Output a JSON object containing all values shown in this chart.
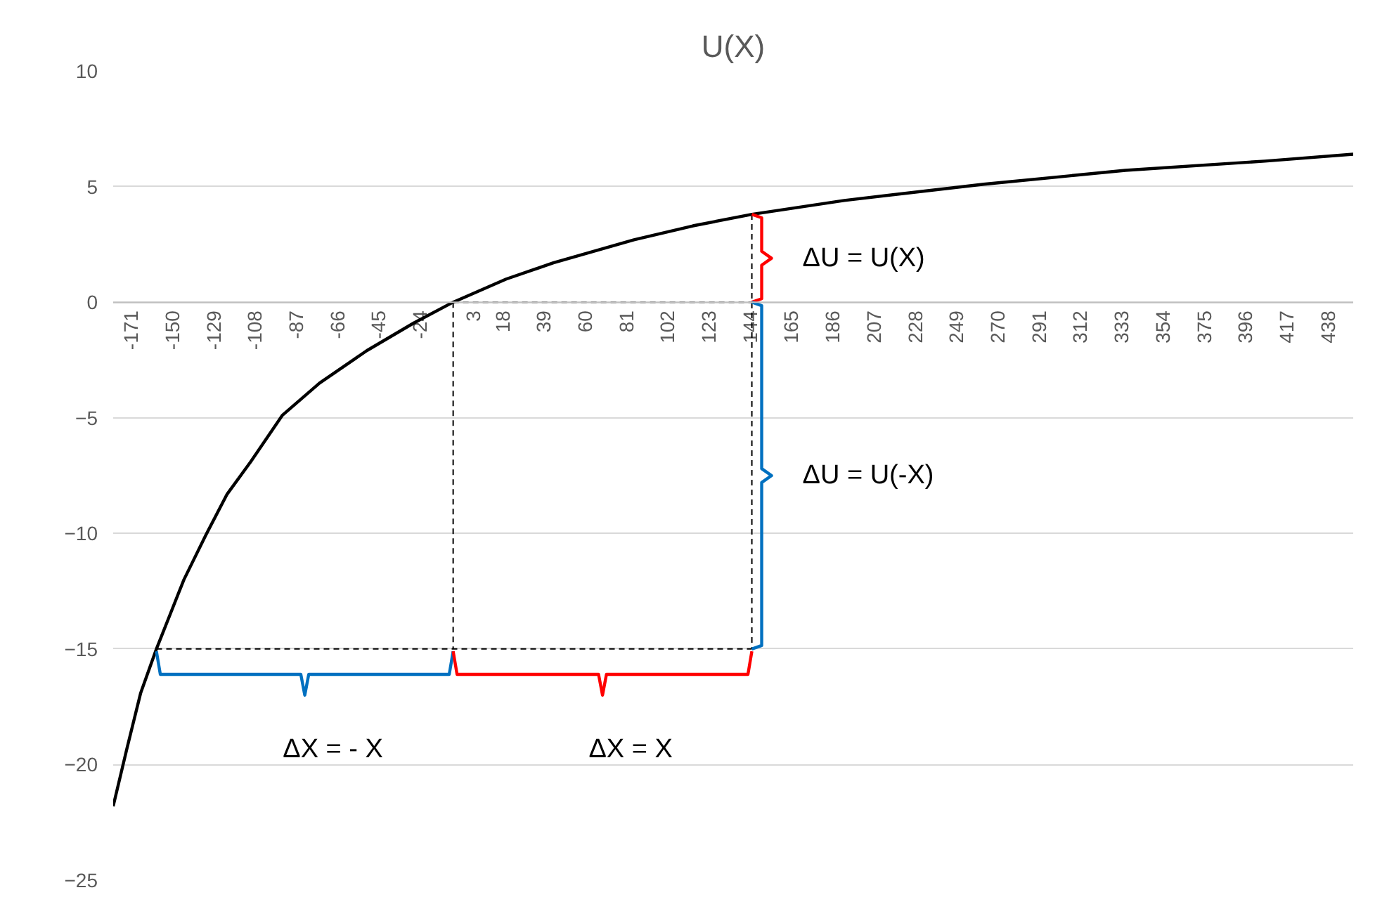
{
  "chart_data": {
    "type": "line",
    "title": "U(X)",
    "series": [
      {
        "color": "#000000",
        "line_style": "solid",
        "x": [
          -180,
          -173,
          -166,
          -158,
          -151,
          -144,
          -133,
          -122,
          -110,
          -94,
          -75,
          -51,
          -27,
          -7,
          20,
          44,
          85,
          115,
          145,
          192,
          263,
          335,
          406,
          451
        ],
        "values": [
          -21.8,
          -19.3,
          -16.9,
          -15.0,
          -13.5,
          -12.0,
          -10.1,
          -8.3,
          -6.9,
          -4.9,
          -3.5,
          -2.1,
          -0.9,
          0,
          1.0,
          1.7,
          2.7,
          3.3,
          3.8,
          4.4,
          5.1,
          5.7,
          6.1,
          6.4
        ]
      },
      {
        "color": "#000000",
        "line_style": "dashed",
        "x": [
          -7,
          -7
        ],
        "values": [
          0,
          -15
        ]
      },
      {
        "color": "#000000",
        "line_style": "dashed",
        "x": [
          145,
          145
        ],
        "values": [
          3.8,
          -15
        ]
      },
      {
        "color": "#000000",
        "line_style": "dashed",
        "x": [
          -7,
          145
        ],
        "values": [
          0,
          0
        ]
      },
      {
        "color": "#000000",
        "line_style": "dashed",
        "x": [
          -158,
          145
        ],
        "values": [
          -15,
          -15
        ]
      },
      {
        "color": "#ff0000",
        "line_style": "solid",
        "x": [
          145,
          150,
          150,
          155,
          150,
          150,
          145
        ],
        "values": [
          0,
          0.15,
          1.6,
          1.9,
          2.2,
          3.65,
          3.8
        ]
      },
      {
        "color": "#0070c0",
        "line_style": "solid",
        "x": [
          145,
          150,
          150,
          155,
          150,
          150,
          145
        ],
        "values": [
          -15,
          -14.85,
          -7.8,
          -7.5,
          -7.2,
          -0.15,
          0
        ]
      },
      {
        "color": "#0070c0",
        "line_style": "solid",
        "x": [
          -158,
          -156,
          -84.5,
          -82.5,
          -80.5,
          -9,
          -7
        ],
        "values": [
          -15.1,
          -16.1,
          -16.1,
          -17.0,
          -16.1,
          -16.1,
          -15.1
        ]
      },
      {
        "color": "#ff0000",
        "line_style": "solid",
        "x": [
          -7,
          -5,
          67,
          69,
          71,
          143,
          145
        ],
        "values": [
          -15.1,
          -16.1,
          -16.1,
          -17.0,
          -16.1,
          -16.1,
          -15.1
        ]
      }
    ],
    "annotations": [
      "ΔU = U(X)",
      "ΔU = U(-X)",
      "ΔX = - X",
      "ΔX = X"
    ],
    "xlim": [
      -180,
      451
    ],
    "ylim": [
      -25,
      10
    ],
    "xticks": [
      -171,
      -150,
      -129,
      -108,
      -87,
      -66,
      -45,
      -24,
      3,
      18,
      39,
      60,
      81,
      102,
      123,
      144,
      165,
      186,
      207,
      228,
      249,
      270,
      291,
      312,
      333,
      354,
      375,
      396,
      417,
      438
    ],
    "yticks": [
      -25,
      -20,
      -15,
      -10,
      -5,
      0,
      5,
      10
    ],
    "grid": "y"
  }
}
